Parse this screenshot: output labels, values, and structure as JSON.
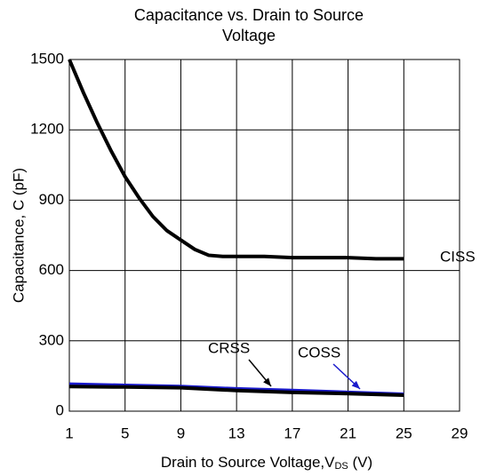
{
  "chart_data": {
    "type": "line",
    "title": "Capacitance vs. Drain to Source Voltage",
    "xlabel": {
      "text": "Drain to Source  Voltage,V",
      "subscript": "DS",
      "suffix": " (V)"
    },
    "ylabel": "Capacitance, C (pF)",
    "xlim": [
      1,
      29
    ],
    "xticks": [
      1,
      5,
      9,
      13,
      17,
      21,
      25,
      29
    ],
    "ylim": [
      0,
      1500
    ],
    "yticks": [
      0,
      300,
      600,
      900,
      1200,
      1500
    ],
    "grid": true,
    "series": [
      {
        "name": "CISS",
        "color": "#000000",
        "x": [
          1,
          2,
          3,
          4,
          5,
          6,
          7,
          8,
          9,
          10,
          11,
          12,
          13,
          15,
          17,
          19,
          21,
          23,
          25
        ],
        "values": [
          1500,
          1360,
          1230,
          1110,
          1000,
          910,
          830,
          770,
          730,
          690,
          665,
          660,
          660,
          660,
          655,
          655,
          655,
          650,
          650
        ]
      },
      {
        "name": "COSS",
        "color": "#1a1acc",
        "x": [
          1,
          5,
          9,
          13,
          17,
          21,
          25
        ],
        "values": [
          115,
          110,
          105,
          95,
          88,
          80,
          72
        ]
      },
      {
        "name": "CRSS",
        "color": "#000000",
        "x": [
          1,
          5,
          9,
          13,
          17,
          21,
          25
        ],
        "values": [
          105,
          103,
          100,
          88,
          80,
          75,
          68
        ]
      }
    ]
  }
}
